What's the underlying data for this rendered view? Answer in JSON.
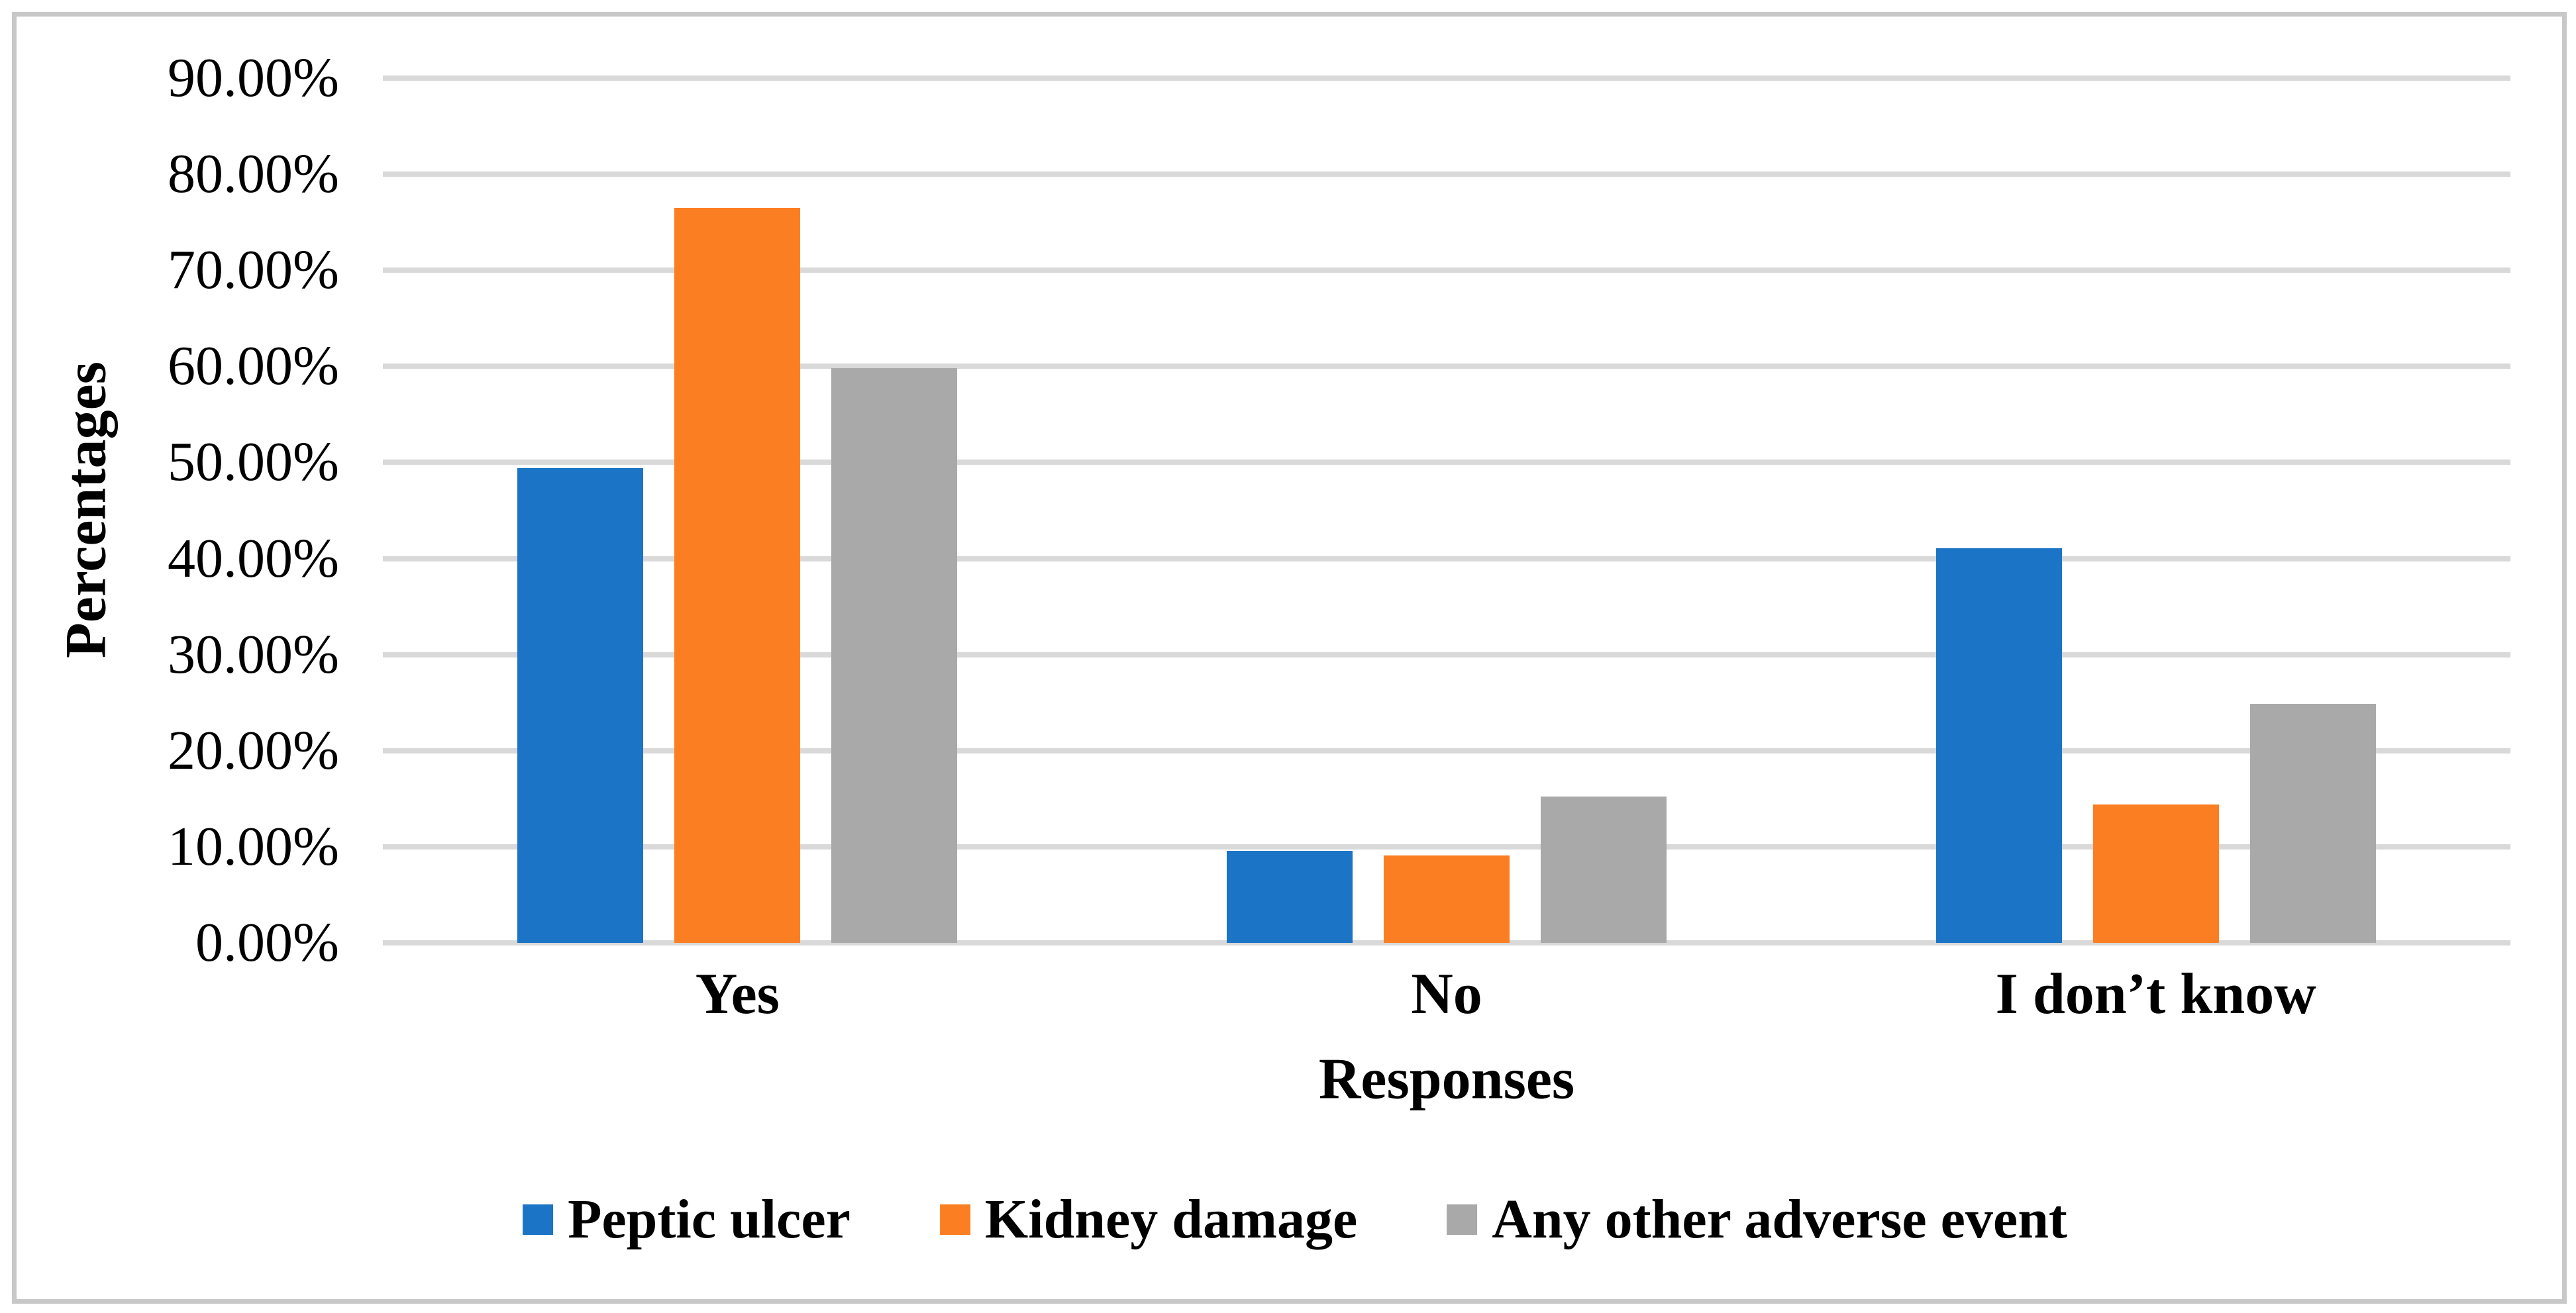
{
  "chart_data": {
    "type": "bar",
    "title": "",
    "categories": [
      "Yes",
      "No",
      "I don’t know"
    ],
    "series": [
      {
        "name": "Peptic ulcer",
        "color": "#1B74C5",
        "values": [
          49.4,
          9.6,
          41.1
        ]
      },
      {
        "name": "Kidney damage",
        "color": "#FC7E22",
        "values": [
          76.5,
          9.1,
          14.4
        ]
      },
      {
        "name": "Any other adverse event",
        "color": "#A9A9A9",
        "values": [
          59.8,
          15.2,
          24.9
        ]
      }
    ],
    "value_unit": "percent",
    "xlabel": "Responses",
    "ylabel": "Percentages",
    "ylim": [
      0,
      90
    ],
    "ytick_step": 10,
    "ytick_labels": [
      "0.00%",
      "10.00%",
      "20.00%",
      "30.00%",
      "40.00%",
      "50.00%",
      "60.00%",
      "70.00%",
      "80.00%",
      "90.00%"
    ],
    "grid": "horizontal",
    "legend_position": "bottom"
  },
  "colors": {
    "background": "#FFFFFF",
    "gridline": "#D9D9D9",
    "frame_border": "#C8C8C8",
    "text": "#000000"
  }
}
